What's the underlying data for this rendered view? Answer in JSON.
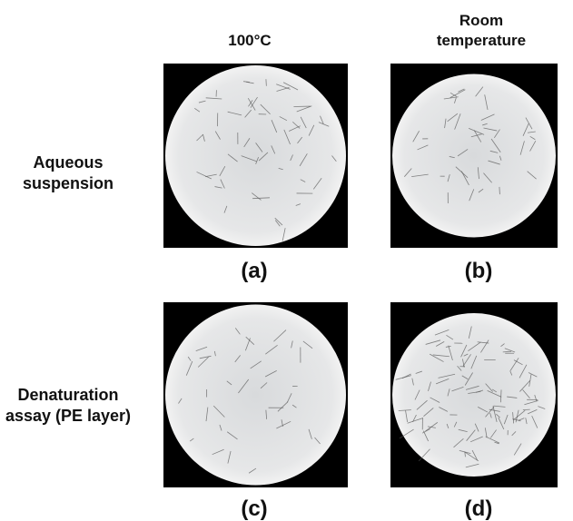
{
  "column_headers": [
    "100°C",
    "Room temperature"
  ],
  "row_labels": [
    "Aqueous suspension",
    "Denaturation assay (PE layer)"
  ],
  "panels": [
    {
      "label": "(a)"
    },
    {
      "label": "(b)"
    },
    {
      "label": "(c)"
    },
    {
      "label": "(d)"
    }
  ]
}
